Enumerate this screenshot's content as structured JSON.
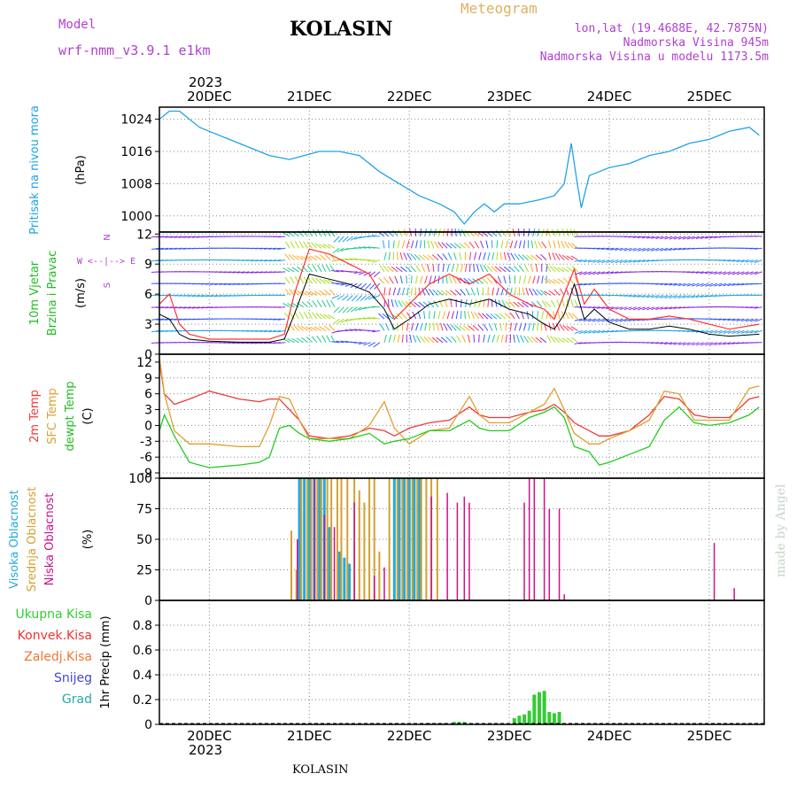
{
  "header": {
    "model_label": "Model",
    "model_name": "wrf-nmm_v3.9.1 e1km",
    "title": "KOLASIN",
    "meteogram_label": "Meteogram",
    "lonlat": "lon,lat (19.4688E, 42.7875N)",
    "altitude": "Nadmorska Visina 945m",
    "model_altitude": "Nadmorska Visina u modelu 1173.5m",
    "year_top": "2023",
    "year_bottom": "2023",
    "footer": "KOLASIN",
    "watermark": "made by Angel"
  },
  "colors": {
    "pressure": "#1fa3e8",
    "wind_speed": "#000000",
    "gust": "#ff3333",
    "temp_2m": "#ee3a3a",
    "sfc_temp": "#e0a030",
    "dewpt": "#22cc22",
    "cloud_high": "#22aadd",
    "cloud_mid": "#d4a030",
    "cloud_low": "#cc1188",
    "precip": "#33cc33",
    "grid": "#888888",
    "header_purple": "#b040d0",
    "header_gold": "#e0b060"
  },
  "chart_data": [
    {
      "name": "pressure",
      "type": "line",
      "ylabel": [
        "Pritisak na nivou mora",
        "(hPa)"
      ],
      "ylim": [
        996,
        1027
      ],
      "yticks": [
        1000,
        1008,
        1016,
        1024
      ],
      "x": [
        19.5,
        19.6,
        19.7,
        19.8,
        19.9,
        20.0,
        20.2,
        20.4,
        20.6,
        20.8,
        20.95,
        21.1,
        21.3,
        21.5,
        21.7,
        21.9,
        22.1,
        22.3,
        22.45,
        22.55,
        22.65,
        22.75,
        22.85,
        22.95,
        23.1,
        23.3,
        23.45,
        23.55,
        23.62,
        23.68,
        23.72,
        23.8,
        23.9,
        24.0,
        24.2,
        24.4,
        24.6,
        24.8,
        25.0,
        25.2,
        25.4,
        25.5
      ],
      "values": [
        1024,
        1026,
        1026,
        1024,
        1022,
        1021,
        1019,
        1017,
        1015,
        1014,
        1015,
        1016,
        1016,
        1015,
        1011,
        1008,
        1005,
        1003,
        1001,
        998,
        1001,
        1003,
        1001,
        1003,
        1003,
        1004,
        1005,
        1008,
        1018,
        1008,
        1002,
        1010,
        1011,
        1012,
        1013,
        1015,
        1016,
        1018,
        1019,
        1021,
        1022,
        1020
      ]
    },
    {
      "name": "wind",
      "type": "line",
      "ylabel": [
        "10m Vjetar",
        "Brzina i Pravac",
        "(m/s)"
      ],
      "direction_legend": [
        "N",
        "W <--|--> E",
        "S"
      ],
      "ylim": [
        0,
        12.2
      ],
      "yticks": [
        0,
        3,
        6,
        9,
        12
      ],
      "x": [
        19.5,
        19.6,
        19.7,
        19.8,
        20.0,
        20.3,
        20.6,
        20.75,
        20.85,
        21.0,
        21.2,
        21.4,
        21.6,
        21.75,
        21.85,
        22.0,
        22.2,
        22.4,
        22.6,
        22.8,
        23.0,
        23.2,
        23.35,
        23.45,
        23.55,
        23.65,
        23.75,
        23.85,
        24.0,
        24.2,
        24.4,
        24.6,
        24.8,
        25.0,
        25.2,
        25.5
      ],
      "speed": [
        4,
        3.5,
        2,
        1.5,
        1.3,
        1.2,
        1.2,
        1.5,
        4,
        8,
        7.5,
        7,
        6.2,
        4.5,
        2.5,
        3.5,
        5,
        5.5,
        5,
        5.5,
        4.5,
        4,
        3,
        2.5,
        4,
        7,
        3.5,
        4.5,
        3.2,
        2.5,
        2.5,
        2.8,
        2.5,
        2,
        1.8,
        2
      ],
      "gust": [
        5,
        6,
        3,
        2,
        1.5,
        1.5,
        1.5,
        2,
        6,
        10.5,
        10,
        9,
        8,
        5.5,
        3.5,
        5,
        7,
        8,
        7,
        8,
        6,
        5,
        4.5,
        3.5,
        6,
        8.5,
        5,
        6.5,
        4.5,
        3.5,
        3.5,
        3.8,
        3.5,
        3,
        2.5,
        3
      ]
    },
    {
      "name": "temperature",
      "type": "line",
      "ylabel": [
        "2m Temp",
        "SFC Temp",
        "dewpt Temp",
        "(C)"
      ],
      "series_names": [
        "2m Temp",
        "SFC Temp",
        "dewpt Temp"
      ],
      "ylim": [
        -10,
        13.5
      ],
      "yticks": [
        -9,
        -6,
        -3,
        0,
        3,
        6,
        9,
        12
      ],
      "x": [
        19.5,
        19.55,
        19.65,
        19.8,
        20.0,
        20.3,
        20.5,
        20.6,
        20.7,
        20.8,
        20.9,
        21.0,
        21.2,
        21.4,
        21.6,
        21.75,
        21.85,
        22.0,
        22.2,
        22.4,
        22.6,
        22.7,
        22.8,
        23.0,
        23.2,
        23.35,
        23.45,
        23.55,
        23.65,
        23.8,
        23.9,
        24.0,
        24.2,
        24.4,
        24.55,
        24.7,
        24.85,
        25.0,
        25.2,
        25.4,
        25.5
      ],
      "series": [
        {
          "values": [
            12,
            6,
            4,
            5,
            6.5,
            5,
            4.5,
            5,
            5,
            3,
            1,
            -2,
            -2.5,
            -2,
            -0.5,
            -1,
            -2,
            -0.5,
            0.5,
            1,
            3.5,
            2,
            1.5,
            1.5,
            2.5,
            3,
            4,
            2.5,
            0.5,
            -1,
            -2,
            -2,
            -1,
            2,
            5.5,
            5,
            2,
            1.5,
            1.5,
            5,
            5.5
          ]
        },
        {
          "values": [
            13,
            6,
            -1,
            -3.5,
            -3.5,
            -4,
            -4,
            0,
            5.5,
            5,
            1,
            -2.5,
            -2.5,
            -2.5,
            0,
            4.5,
            -0.5,
            -3.5,
            -1,
            -0.5,
            5.5,
            2,
            0.5,
            0.5,
            2.5,
            4,
            7,
            3,
            -1.5,
            -3.5,
            -3.5,
            -2.5,
            -1,
            1,
            6.5,
            6,
            1,
            1,
            1,
            7,
            7.5
          ]
        },
        {
          "values": [
            -1,
            2,
            -2,
            -7,
            -8,
            -7.5,
            -7,
            -6,
            -0.5,
            0,
            -1.5,
            -2.5,
            -3,
            -2.5,
            -1.5,
            -3.5,
            -3,
            -2.5,
            -1,
            -1,
            1,
            -0.5,
            -1,
            -1,
            1.5,
            2.5,
            3.5,
            1.5,
            -4,
            -5,
            -7.5,
            -7,
            -5.5,
            -4,
            1,
            3.5,
            0.5,
            0,
            0.5,
            2,
            3.5
          ]
        }
      ]
    },
    {
      "name": "cloud",
      "type": "bar",
      "ylabel": [
        "Visoka Oblacnost",
        "Srednja Oblacnost",
        "Niska Oblacnost",
        "(%)"
      ],
      "series_names": [
        "Visoka Oblacnost",
        "Srednja Oblacnost",
        "Niska Oblacnost"
      ],
      "ylim": [
        0,
        100
      ],
      "yticks": [
        0,
        25,
        50,
        75,
        100
      ],
      "high": [
        [
          20.9,
          100
        ],
        [
          20.95,
          100
        ],
        [
          21.0,
          100
        ],
        [
          21.05,
          100
        ],
        [
          21.1,
          100
        ],
        [
          21.15,
          100
        ],
        [
          21.2,
          60
        ],
        [
          21.3,
          40
        ],
        [
          21.35,
          35
        ],
        [
          21.4,
          30
        ],
        [
          21.85,
          100
        ],
        [
          21.9,
          100
        ],
        [
          21.95,
          100
        ],
        [
          22.0,
          100
        ],
        [
          22.05,
          100
        ],
        [
          22.1,
          100
        ]
      ],
      "mid": [
        [
          20.82,
          57
        ],
        [
          20.87,
          25
        ],
        [
          20.92,
          100
        ],
        [
          20.98,
          100
        ],
        [
          21.02,
          100
        ],
        [
          21.08,
          100
        ],
        [
          21.12,
          100
        ],
        [
          21.18,
          100
        ],
        [
          21.22,
          100
        ],
        [
          21.28,
          100
        ],
        [
          21.32,
          100
        ],
        [
          21.38,
          100
        ],
        [
          21.45,
          100
        ],
        [
          21.5,
          90
        ],
        [
          21.55,
          80
        ],
        [
          21.6,
          100
        ],
        [
          21.65,
          100
        ],
        [
          21.7,
          40
        ],
        [
          21.8,
          100
        ],
        [
          21.88,
          100
        ],
        [
          21.93,
          100
        ],
        [
          21.98,
          100
        ],
        [
          22.03,
          100
        ],
        [
          22.08,
          100
        ],
        [
          22.12,
          100
        ],
        [
          22.17,
          100
        ],
        [
          22.22,
          100
        ],
        [
          22.28,
          100
        ]
      ],
      "low": [
        [
          20.88,
          50
        ],
        [
          21.05,
          100
        ],
        [
          21.15,
          70
        ],
        [
          21.25,
          60
        ],
        [
          21.45,
          80
        ],
        [
          21.65,
          20
        ],
        [
          21.75,
          27
        ],
        [
          22.22,
          85
        ],
        [
          22.38,
          88
        ],
        [
          22.48,
          80
        ],
        [
          22.55,
          85
        ],
        [
          22.6,
          80
        ],
        [
          23.15,
          80
        ],
        [
          23.2,
          100
        ],
        [
          23.25,
          100
        ],
        [
          23.35,
          100
        ],
        [
          23.4,
          75
        ],
        [
          23.5,
          75
        ],
        [
          23.55,
          5
        ],
        [
          25.05,
          47
        ],
        [
          25.25,
          10
        ]
      ]
    },
    {
      "name": "precip",
      "type": "bar",
      "ylabel": [
        "1hr Precip (mm)"
      ],
      "legend": [
        "Ukupna Kisa",
        "Konvek.Kisa",
        "Zaledj.Kisa",
        "Snijeg",
        "Grad"
      ],
      "legend_colors": [
        "#33cc33",
        "#ee3333",
        "#ee7733",
        "#4444dd",
        "#22aaaa"
      ],
      "ylim": [
        0,
        1.0
      ],
      "yticks": [
        0,
        0.2,
        0.4,
        0.6,
        0.8
      ],
      "values": [
        [
          22.2,
          0.01
        ],
        [
          22.25,
          0.01
        ],
        [
          22.3,
          0.01
        ],
        [
          22.35,
          0.01
        ],
        [
          22.45,
          0.02
        ],
        [
          22.5,
          0.02
        ],
        [
          22.55,
          0.02
        ],
        [
          23.05,
          0.05
        ],
        [
          23.1,
          0.07
        ],
        [
          23.15,
          0.08
        ],
        [
          23.2,
          0.11
        ],
        [
          23.25,
          0.24
        ],
        [
          23.3,
          0.26
        ],
        [
          23.35,
          0.27
        ],
        [
          23.4,
          0.1
        ],
        [
          23.45,
          0.09
        ],
        [
          23.5,
          0.1
        ]
      ]
    }
  ],
  "time_axis": {
    "labels": [
      "20DEC",
      "21DEC",
      "22DEC",
      "23DEC",
      "24DEC",
      "25DEC"
    ],
    "range": [
      19.5,
      25.55
    ],
    "label_positions": [
      20,
      21,
      22,
      23,
      24,
      25
    ]
  }
}
